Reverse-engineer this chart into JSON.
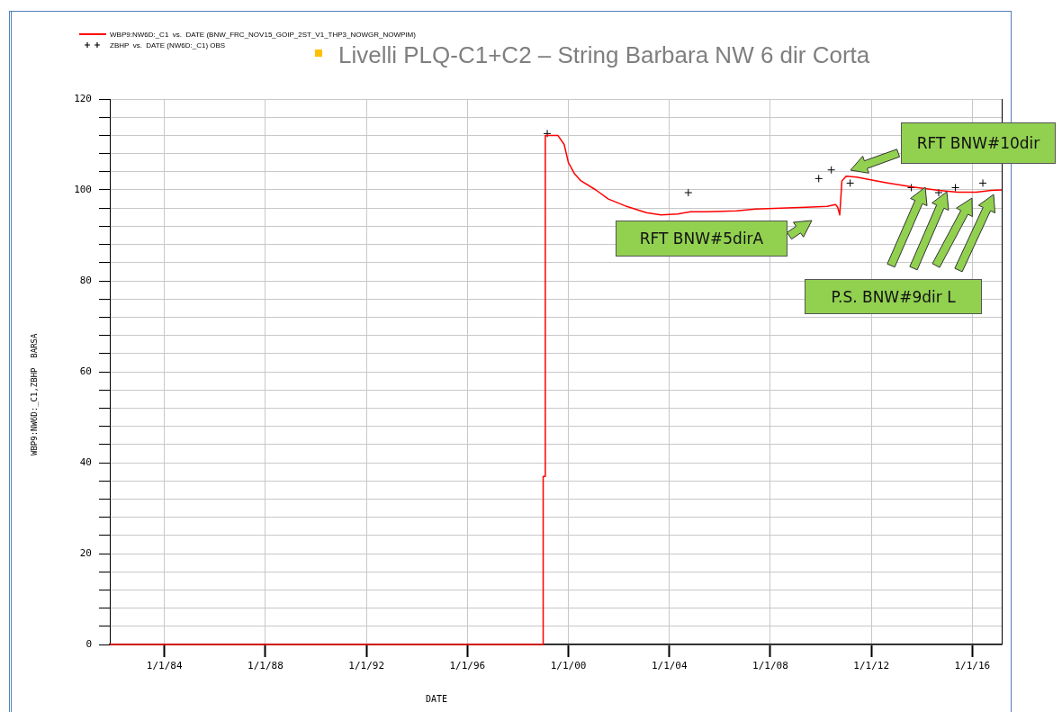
{
  "chart_data": {
    "type": "line",
    "title": "Livelli PLQ-C1+C2 – String Barbara NW 6 dir Corta",
    "xlabel": "DATE",
    "ylabel": "WBP9:NW6D:_C1,ZBHP  BARSA",
    "legend": "top left",
    "grid": true,
    "xlim": [
      "1981-11",
      "2017-03"
    ],
    "xticks": [
      {
        "value": "1984-01-01",
        "label": "1/1/84"
      },
      {
        "value": "1988-01-01",
        "label": "1/1/88"
      },
      {
        "value": "1992-01-01",
        "label": "1/1/92"
      },
      {
        "value": "1996-01-01",
        "label": "1/1/96"
      },
      {
        "value": "2000-01-01",
        "label": "1/1/00"
      },
      {
        "value": "2004-01-01",
        "label": "1/1/04"
      },
      {
        "value": "2008-01-01",
        "label": "1/1/08"
      },
      {
        "value": "2012-01-01",
        "label": "1/1/12"
      },
      {
        "value": "2016-01-01",
        "label": "1/1/16"
      }
    ],
    "ylim": [
      0,
      120
    ],
    "yticks": [
      0,
      {
        "value": 4,
        "label": null
      },
      {
        "value": 8,
        "label": null
      },
      {
        "value": 12,
        "label": null
      },
      {
        "value": 16,
        "label": null
      },
      20,
      {
        "value": 24,
        "label": null
      },
      {
        "value": 28,
        "label": null
      },
      {
        "value": 32,
        "label": null
      },
      {
        "value": 36,
        "label": null
      },
      40,
      {
        "value": 44,
        "label": null
      },
      {
        "value": 48,
        "label": null
      },
      {
        "value": 52,
        "label": null
      },
      {
        "value": 56,
        "label": null
      },
      60,
      {
        "value": 64,
        "label": null
      },
      {
        "value": 68,
        "label": null
      },
      {
        "value": 72,
        "label": null
      },
      {
        "value": 76,
        "label": null
      },
      80,
      {
        "value": 84,
        "label": null
      },
      {
        "value": 88,
        "label": null
      },
      {
        "value": 92,
        "label": null
      },
      {
        "value": 96,
        "label": null
      },
      100,
      {
        "value": 104,
        "label": null
      },
      {
        "value": 108,
        "label": null
      },
      {
        "value": 112,
        "label": null
      },
      {
        "value": 116,
        "label": null
      },
      120
    ],
    "series": [
      {
        "name": "WBP9:NW6D:_C1  vs.  DATE (BNW_FRC_NOV15_GOIP_2ST_V1_THP3_NOWGR_NOWPIM)",
        "color": "#ff0000",
        "marker": "none",
        "line_style": "solid",
        "x": [
          "1981-11",
          "1999-01",
          "1999-01",
          "1999-02",
          "1999-02",
          "1999-08",
          "1999-11",
          "2000-01",
          "2000-04",
          "2000-07",
          "2001-02",
          "2001-08",
          "2002-04",
          "2003-02",
          "2003-09",
          "2004-05",
          "2004-11",
          "2005-07",
          "2006-09",
          "2007-06",
          "2008-06",
          "2009-06",
          "2010-04",
          "2010-08",
          "2010-09",
          "2010-10",
          "2010-11",
          "2011-01",
          "2011-06",
          "2012-08",
          "2013-08",
          "2014-09",
          "2015-06",
          "2016-03",
          "2016-10",
          "2017-03"
        ],
        "values": [
          0,
          0,
          37,
          37,
          112,
          112,
          110,
          106,
          103.5,
          102,
          100,
          98,
          96.5,
          95,
          94.5,
          94.7,
          95.2,
          95.2,
          95.4,
          95.8,
          96,
          96.2,
          96.4,
          96.8,
          96.2,
          94.5,
          102,
          103,
          102.8,
          101.6,
          100.7,
          99.9,
          99.5,
          99.5,
          99.9,
          100
        ]
      },
      {
        "name": "ZBHP  vs.  DATE (NW6D:_C1) OBS",
        "type": "scatter",
        "color": "#000000",
        "marker": "cross",
        "x": [
          "1999-03",
          "2004-10",
          "2009-12",
          "2010-06",
          "2011-03",
          "2013-08",
          "2014-09",
          "2015-05",
          "2016-06"
        ],
        "values": [
          112.4,
          99.4,
          102.5,
          104.4,
          101.5,
          100.5,
          99.4,
          100.5,
          101.5
        ]
      }
    ],
    "annotations": [
      "RFT BNW#10dir",
      "RFT BNW#5dirA",
      "P.S. BNW#9dir L"
    ]
  }
}
